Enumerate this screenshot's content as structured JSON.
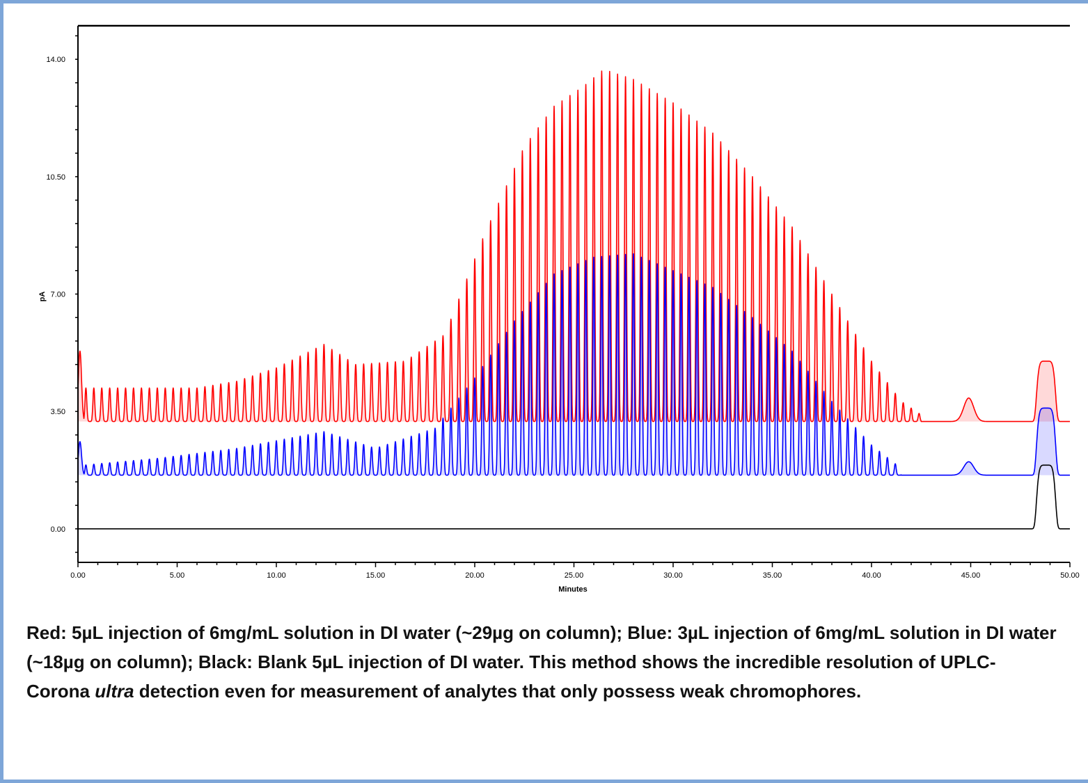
{
  "chart_data": {
    "type": "line",
    "xlabel": "Minutes",
    "ylabel": "pA",
    "xlim": [
      0,
      50
    ],
    "ylim": [
      -1.0,
      15.0
    ],
    "x_ticks": [
      "0.00",
      "5.00",
      "10.00",
      "15.00",
      "20.00",
      "25.00",
      "30.00",
      "35.00",
      "40.00",
      "45.00",
      "50.00"
    ],
    "y_ticks": [
      "0.00",
      "3.50",
      "7.00",
      "10.50",
      "14.00"
    ],
    "series": [
      {
        "color": "#ff0000",
        "baseline": 3.2,
        "envelope": [
          [
            0.3,
            4.2
          ],
          [
            3.5,
            4.2
          ],
          [
            6.0,
            4.2
          ],
          [
            8.0,
            4.4
          ],
          [
            10.0,
            4.8
          ],
          [
            12.4,
            5.5
          ],
          [
            14.0,
            4.9
          ],
          [
            16.5,
            5.0
          ],
          [
            18.5,
            5.8
          ],
          [
            20.5,
            8.8
          ],
          [
            22.5,
            11.4
          ],
          [
            24.0,
            12.6
          ],
          [
            25.5,
            13.2
          ],
          [
            26.5,
            13.7
          ],
          [
            28.0,
            13.4
          ],
          [
            30.0,
            12.7
          ],
          [
            32.0,
            11.8
          ],
          [
            34.0,
            10.5
          ],
          [
            36.0,
            9.0
          ],
          [
            38.0,
            7.0
          ],
          [
            40.0,
            5.0
          ],
          [
            41.5,
            3.8
          ],
          [
            42.5,
            3.4
          ]
        ],
        "features": [
          {
            "x": 0.1,
            "height": 5.3,
            "width": 0.08
          },
          {
            "x": 44.9,
            "height": 3.9,
            "width": 0.25
          },
          {
            "x": 48.8,
            "height": 5.0,
            "width": 0.5,
            "shape": "plateau"
          }
        ]
      },
      {
        "color": "#0000ff",
        "baseline": 1.6,
        "envelope": [
          [
            0.3,
            1.9
          ],
          [
            4.0,
            2.1
          ],
          [
            8.0,
            2.4
          ],
          [
            12.4,
            2.9
          ],
          [
            15.0,
            2.4
          ],
          [
            18.0,
            3.0
          ],
          [
            20.0,
            4.5
          ],
          [
            22.0,
            6.2
          ],
          [
            24.0,
            7.6
          ],
          [
            26.0,
            8.1
          ],
          [
            28.0,
            8.2
          ],
          [
            30.0,
            7.7
          ],
          [
            32.0,
            7.2
          ],
          [
            34.0,
            6.3
          ],
          [
            36.0,
            5.3
          ],
          [
            38.0,
            3.8
          ],
          [
            40.0,
            2.5
          ],
          [
            41.5,
            1.8
          ]
        ],
        "features": [
          {
            "x": 0.1,
            "height": 2.6,
            "width": 0.08
          },
          {
            "x": 44.9,
            "height": 2.0,
            "width": 0.25
          },
          {
            "x": 48.8,
            "height": 3.6,
            "width": 0.5,
            "shape": "plateau"
          }
        ]
      },
      {
        "color": "#000000",
        "baseline": 0.0,
        "envelope": [],
        "features": [
          {
            "x": 48.8,
            "height": 1.9,
            "width": 0.5,
            "shape": "plateau"
          }
        ]
      }
    ],
    "oligomer_peak_spacing_min": 0.4
  },
  "caption": {
    "main": "Red: 5µL injection of 6mg/mL solution in DI water (~29µg on column); Blue: 3µL injection of  6mg/mL solution in DI water (~18µg on column); Black: Blank 5µL injection of DI water. This method shows the incredible resolution of UPLC-Corona ",
    "italic": "ultra",
    "tail": " detection even for measurement of analytes that only possess weak chromophores."
  }
}
